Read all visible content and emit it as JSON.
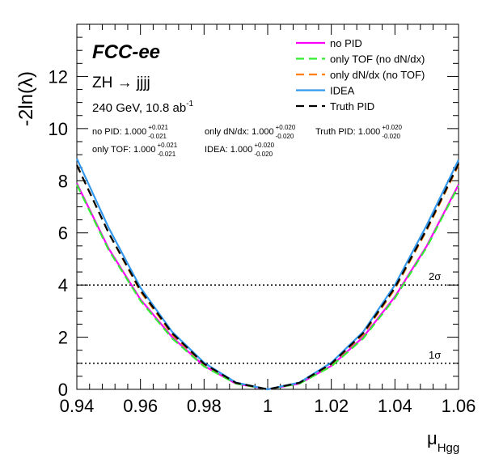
{
  "chart_data": {
    "type": "line",
    "experiment": "FCC-ee",
    "process": "ZH → jjjj",
    "energy_lumi_prefix": "240 GeV, 10.8 ab",
    "energy_lumi_exp": "-1",
    "ylabel": "-2ln(λ)",
    "xlabel_main": "μ",
    "xlabel_sub": "Hgg",
    "xlim": [
      0.94,
      1.06
    ],
    "ylim": [
      0,
      14
    ],
    "xticks": [
      "0.94",
      "0.96",
      "0.98",
      "1",
      "1.02",
      "1.04",
      "1.06"
    ],
    "yticks": [
      "0",
      "2",
      "4",
      "6",
      "8",
      "10",
      "12"
    ],
    "reference_lines": [
      {
        "y": 1,
        "label": "1σ"
      },
      {
        "y": 4,
        "label": "2σ"
      }
    ],
    "x": [
      0.94,
      0.95,
      0.96,
      0.97,
      0.98,
      0.99,
      1.0,
      1.01,
      1.02,
      1.03,
      1.04,
      1.05,
      1.06
    ],
    "series": [
      {
        "name": "no PID",
        "color": "#ff00ff",
        "dash": "solid",
        "values": [
          7.9,
          5.4,
          3.45,
          2.0,
          0.9,
          0.22,
          0.0,
          0.22,
          0.9,
          2.0,
          3.55,
          5.5,
          7.85
        ]
      },
      {
        "name": "only TOF (no dN/dx)",
        "color": "#33ee33",
        "dash": "dashed",
        "values": [
          7.85,
          5.35,
          3.4,
          1.95,
          0.88,
          0.22,
          0.0,
          0.22,
          0.88,
          1.95,
          3.5,
          5.45,
          7.8
        ]
      },
      {
        "name": "only dN/dx (no TOF)",
        "color": "#ff7f00",
        "dash": "dashed",
        "values": [
          8.6,
          6.0,
          3.75,
          2.1,
          0.97,
          0.25,
          0.0,
          0.25,
          0.97,
          2.1,
          3.85,
          6.1,
          8.6
        ]
      },
      {
        "name": "IDEA",
        "color": "#3399ee",
        "dash": "solid",
        "values": [
          8.85,
          6.2,
          3.9,
          2.2,
          1.02,
          0.26,
          0.0,
          0.26,
          1.02,
          2.2,
          4.0,
          6.3,
          8.8
        ]
      },
      {
        "name": "Truth PID",
        "color": "#000000",
        "dash": "dashed",
        "values": [
          8.6,
          6.0,
          3.8,
          2.15,
          0.98,
          0.25,
          0.0,
          0.25,
          0.98,
          2.15,
          3.9,
          6.15,
          8.65
        ]
      }
    ],
    "results": [
      {
        "label": "no PID: 1.000",
        "up": "+0.021",
        "down": "-0.021"
      },
      {
        "label": "only dN/dx: 1.000",
        "up": "+0.020",
        "down": "-0.020"
      },
      {
        "label": "Truth PID: 1.000",
        "up": "+0.020",
        "down": "-0.020"
      },
      {
        "label": "only TOF: 1.000",
        "up": "+0.021",
        "down": "-0.021"
      },
      {
        "label": "IDEA: 1.000",
        "up": "+0.020",
        "down": "-0.020"
      }
    ],
    "legend_position": "top-right"
  }
}
